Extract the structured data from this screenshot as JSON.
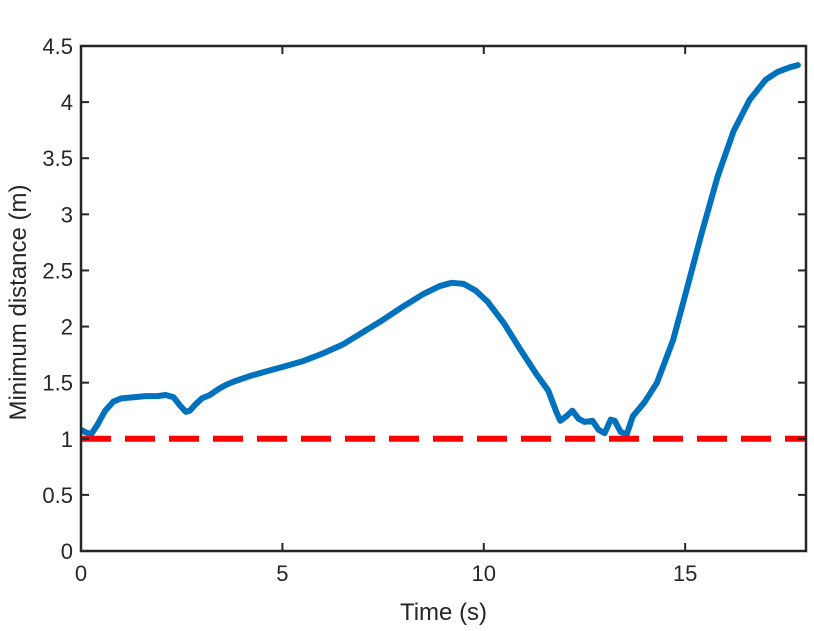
{
  "chart_data": {
    "type": "line",
    "title": "",
    "xlabel": "Time (s)",
    "ylabel": "Minimum distance (m)",
    "xlim": [
      0,
      18
    ],
    "ylim": [
      0,
      4.5
    ],
    "xticks": [
      0,
      5,
      10,
      15
    ],
    "yticks": [
      0,
      0.5,
      1,
      1.5,
      2,
      2.5,
      3,
      3.5,
      4,
      4.5
    ],
    "xtick_labels": [
      "0",
      "5",
      "10",
      "15"
    ],
    "ytick_labels": [
      "0",
      "0.5",
      "1",
      "1.5",
      "2",
      "2.5",
      "3",
      "3.5",
      "4",
      "4.5"
    ],
    "grid": false,
    "legend": null,
    "series": [
      {
        "style": "solid",
        "color": "#0072BD",
        "x": [
          0,
          0.1,
          0.25,
          0.4,
          0.6,
          0.8,
          1.0,
          1.3,
          1.6,
          1.9,
          2.1,
          2.3,
          2.45,
          2.6,
          2.7,
          2.85,
          3.0,
          3.2,
          3.4,
          3.6,
          3.8,
          4.2,
          4.6,
          5.0,
          5.5,
          6.0,
          6.5,
          7.0,
          7.5,
          8.0,
          8.5,
          8.9,
          9.2,
          9.5,
          9.8,
          10.1,
          10.5,
          10.9,
          11.3,
          11.6,
          11.8,
          11.9,
          12.05,
          12.2,
          12.35,
          12.5,
          12.7,
          12.85,
          13.0,
          13.15,
          13.25,
          13.4,
          13.55,
          13.7,
          14.0,
          14.3,
          14.7,
          15.0,
          15.4,
          15.8,
          16.2,
          16.6,
          17.0,
          17.3,
          17.6,
          17.8
        ],
        "y": [
          1.08,
          1.06,
          1.04,
          1.12,
          1.25,
          1.33,
          1.36,
          1.37,
          1.38,
          1.38,
          1.39,
          1.37,
          1.3,
          1.24,
          1.25,
          1.31,
          1.36,
          1.39,
          1.44,
          1.48,
          1.51,
          1.56,
          1.6,
          1.64,
          1.69,
          1.76,
          1.84,
          1.95,
          2.06,
          2.18,
          2.29,
          2.36,
          2.39,
          2.38,
          2.32,
          2.22,
          2.03,
          1.8,
          1.58,
          1.43,
          1.24,
          1.16,
          1.2,
          1.25,
          1.18,
          1.15,
          1.16,
          1.08,
          1.05,
          1.17,
          1.16,
          1.06,
          1.04,
          1.2,
          1.33,
          1.5,
          1.88,
          2.28,
          2.82,
          3.33,
          3.74,
          4.02,
          4.2,
          4.27,
          4.31,
          4.33
        ]
      },
      {
        "style": "dashed",
        "color": "#FF0000",
        "x": [
          0,
          18
        ],
        "y": [
          1,
          1
        ]
      }
    ]
  }
}
